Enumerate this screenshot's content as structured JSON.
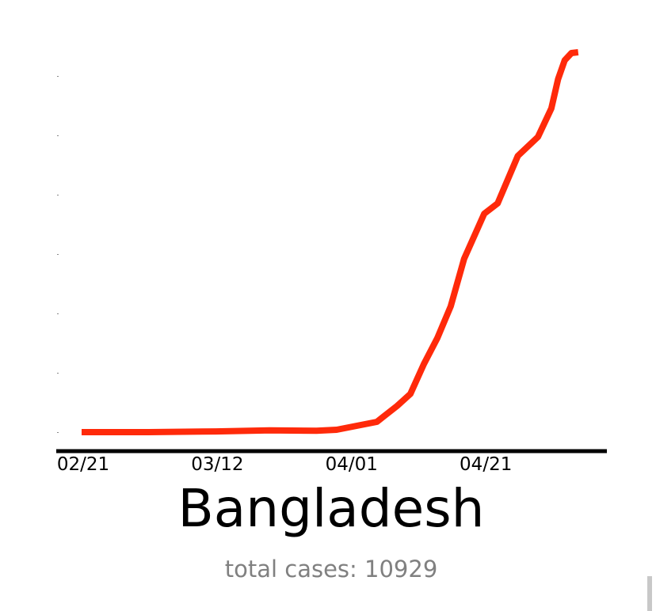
{
  "chart_data": {
    "type": "line",
    "title": "Bangladesh",
    "subtitle": "total cases: 10929",
    "xlabel": "",
    "ylabel": "",
    "x_tick_labels": [
      "02/21",
      "03/12",
      "04/01",
      "04/21"
    ],
    "y_tick_labels_shown": false,
    "ylim": [
      0,
      10929
    ],
    "grid": false,
    "line_color": "#ff2a0a",
    "series": [
      {
        "x": [
          "02/21",
          "03/02",
          "03/12",
          "03/20",
          "03/27",
          "03/30",
          "04/05",
          "04/06",
          "04/08",
          "04/10",
          "04/12",
          "04/14",
          "04/16",
          "04/18",
          "04/21",
          "04/23",
          "04/26",
          "04/29",
          "05/01",
          "05/02",
          "05/03",
          "05/04",
          "05/05"
        ],
        "y": [
          0,
          0,
          20,
          50,
          40,
          68,
          296,
          450,
          751,
          1100,
          1958,
          2700,
          3620,
          4986,
          6284,
          6580,
          7946,
          8493,
          9313,
          10155,
          10700,
          10906,
          10929
        ]
      }
    ]
  }
}
